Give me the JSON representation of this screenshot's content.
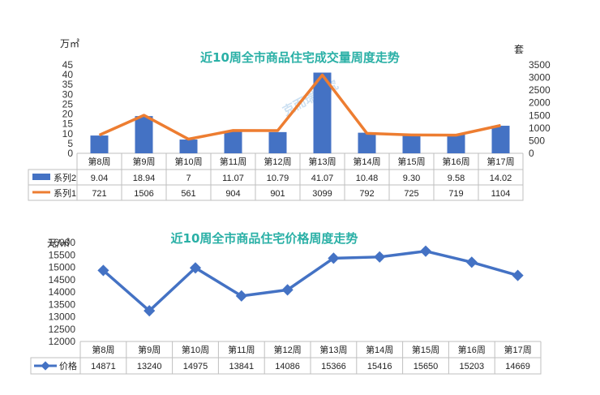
{
  "chart_data": [
    {
      "type": "bar+line",
      "title": "近10周全市商品住宅成交量周度走势",
      "left_unit": "万㎡",
      "right_unit": "套",
      "watermark": "克而瑞研究",
      "categories": [
        "第8周",
        "第9周",
        "第10周",
        "第11周",
        "第12周",
        "第13周",
        "第14周",
        "第15周",
        "第16周",
        "第17周"
      ],
      "left_ylim": [
        0,
        45
      ],
      "left_ticks": [
        "0",
        "5",
        "10",
        "15",
        "20",
        "25",
        "30",
        "35",
        "40",
        "45"
      ],
      "right_ylim": [
        0,
        3500
      ],
      "right_ticks": [
        "0",
        "500",
        "1000",
        "1500",
        "2000",
        "2500",
        "3000",
        "3500"
      ],
      "grid": false,
      "legend": "table-left",
      "series": [
        {
          "name": "系列2",
          "kind": "bar",
          "axis": "left",
          "color": "#4472c4",
          "values": [
            9.04,
            18.94,
            7,
            11.07,
            10.79,
            41.07,
            10.48,
            9.3,
            9.58,
            14.02
          ],
          "labels": [
            "9.04",
            "18.94",
            "7",
            "11.07",
            "10.79",
            "41.07",
            "10.48",
            "9.30",
            "9.58",
            "14.02"
          ]
        },
        {
          "name": "系列1",
          "kind": "line",
          "axis": "right",
          "color": "#ed7d31",
          "values": [
            721,
            1506,
            561,
            904,
            901,
            3099,
            792,
            725,
            719,
            1104
          ],
          "labels": [
            "721",
            "1506",
            "561",
            "904",
            "901",
            "3099",
            "792",
            "725",
            "719",
            "1104"
          ]
        }
      ]
    },
    {
      "type": "line",
      "title": "近10周全市商品住宅价格周度走势",
      "left_unit": "元/㎡",
      "categories": [
        "第8周",
        "第9周",
        "第10周",
        "第11周",
        "第12周",
        "第13周",
        "第14周",
        "第15周",
        "第16周",
        "第17周"
      ],
      "ylim": [
        12000,
        16000
      ],
      "ticks": [
        "12000",
        "12500",
        "13000",
        "13500",
        "14000",
        "14500",
        "15000",
        "15500",
        "16000"
      ],
      "grid": false,
      "legend": "table-left",
      "series": [
        {
          "name": "价格",
          "kind": "line",
          "color": "#4472c4",
          "values": [
            14871,
            13240,
            14975,
            13841,
            14086,
            15366,
            15416,
            15650,
            15203,
            14669
          ],
          "labels": [
            "14871",
            "13240",
            "14975",
            "13841",
            "14086",
            "15366",
            "15416",
            "15650",
            "15203",
            "14669"
          ]
        }
      ]
    }
  ]
}
